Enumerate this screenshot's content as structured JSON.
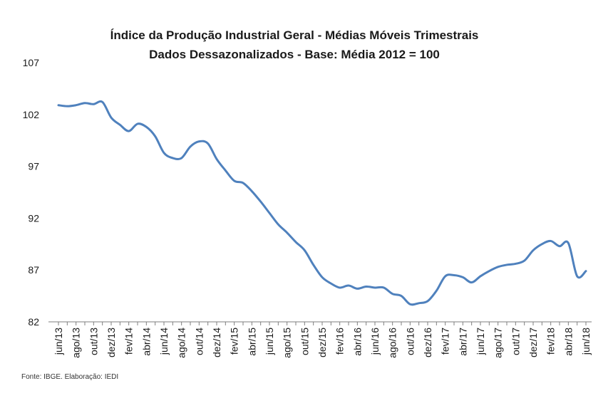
{
  "chart_data": {
    "type": "line",
    "title": "Índice da Produção Industrial Geral - Médias Móveis Trimestrais",
    "subtitle": "Dados Dessazonalizados - Base: Média 2012 = 100",
    "source": "Fonte: IBGE. Elaboração: IEDI",
    "xlabel": "",
    "ylabel": "",
    "ylim": [
      82,
      107
    ],
    "yticks": [
      82,
      87,
      92,
      97,
      102,
      107
    ],
    "grid": false,
    "legend": "none",
    "line_color": "#4f81bd",
    "x_tick_labels": [
      "jun/13",
      "ago/13",
      "out/13",
      "dez/13",
      "fev/14",
      "abr/14",
      "jun/14",
      "ago/14",
      "out/14",
      "dez/14",
      "fev/15",
      "abr/15",
      "jun/15",
      "ago/15",
      "out/15",
      "dez/15",
      "fev/16",
      "abr/16",
      "jun/16",
      "ago/16",
      "out/16",
      "dez/16",
      "fev/17",
      "abr/17",
      "jun/17",
      "ago/17",
      "out/17",
      "dez/17",
      "fev/18",
      "abr/18",
      "jun/18"
    ],
    "x": [
      "jun/13",
      "jul/13",
      "ago/13",
      "set/13",
      "out/13",
      "nov/13",
      "dez/13",
      "jan/14",
      "fev/14",
      "mar/14",
      "abr/14",
      "mai/14",
      "jun/14",
      "jul/14",
      "ago/14",
      "set/14",
      "out/14",
      "nov/14",
      "dez/14",
      "jan/15",
      "fev/15",
      "mar/15",
      "abr/15",
      "mai/15",
      "jun/15",
      "jul/15",
      "ago/15",
      "set/15",
      "out/15",
      "nov/15",
      "dez/15",
      "jan/16",
      "fev/16",
      "mar/16",
      "abr/16",
      "mai/16",
      "jun/16",
      "jul/16",
      "ago/16",
      "set/16",
      "out/16",
      "nov/16",
      "dez/16",
      "jan/17",
      "fev/17",
      "mar/17",
      "abr/17",
      "mai/17",
      "jun/17",
      "jul/17",
      "ago/17",
      "set/17",
      "out/17",
      "nov/17",
      "dez/17",
      "jan/18",
      "fev/18",
      "mar/18",
      "abr/18",
      "mai/18",
      "jun/18"
    ],
    "series": [
      {
        "name": "Índice da Produção Industrial Geral",
        "values": [
          102.9,
          102.8,
          102.9,
          103.1,
          103.0,
          103.2,
          101.7,
          101.0,
          100.4,
          101.1,
          100.8,
          99.9,
          98.3,
          97.8,
          97.8,
          98.9,
          99.4,
          99.2,
          97.7,
          96.6,
          95.6,
          95.4,
          94.6,
          93.6,
          92.5,
          91.4,
          90.6,
          89.7,
          88.9,
          87.5,
          86.3,
          85.7,
          85.3,
          85.5,
          85.2,
          85.4,
          85.3,
          85.3,
          84.7,
          84.5,
          83.7,
          83.8,
          84.0,
          85.0,
          86.4,
          86.5,
          86.3,
          85.8,
          86.4,
          86.9,
          87.3,
          87.5,
          87.6,
          87.9,
          88.9,
          89.5,
          89.8,
          89.3,
          89.6,
          86.4,
          86.9
        ]
      }
    ]
  }
}
